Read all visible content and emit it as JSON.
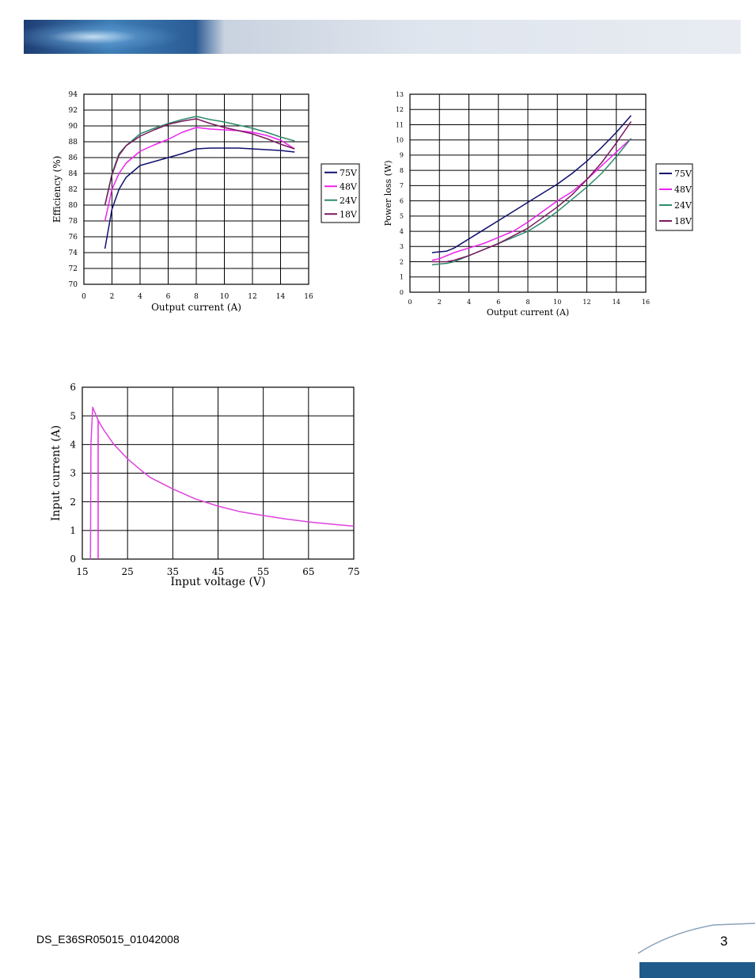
{
  "footer": {
    "doc_code": "DS_E36SR05015_01042008",
    "page": "3"
  },
  "colors": {
    "v75": "#10106e",
    "v48": "#ee22ee",
    "v24": "#2e8b6a",
    "v18": "#7a1860",
    "curve": "#dd44dd",
    "footer_bar": "#1e5a8a"
  },
  "chart_data": [
    {
      "type": "line",
      "xlabel": "Output current (A)",
      "ylabel": "Efficiency (%)",
      "xlim": [
        0,
        16
      ],
      "ylim": [
        70,
        94
      ],
      "xticks": [
        "0",
        "2",
        "4",
        "6",
        "8",
        "10",
        "12",
        "14",
        "16"
      ],
      "yticks": [
        "70",
        "72",
        "74",
        "76",
        "78",
        "80",
        "82",
        "84",
        "86",
        "88",
        "90",
        "92",
        "94"
      ],
      "grid": true,
      "legend_position": "right",
      "series": [
        {
          "name": "75V",
          "color_key": "v75",
          "x": [
            1.5,
            2,
            2.5,
            3,
            4,
            5,
            6,
            7,
            8,
            9,
            10,
            11,
            12,
            13,
            14,
            15
          ],
          "y": [
            74.5,
            79.5,
            82,
            83.5,
            85,
            85.5,
            86,
            86.5,
            87.1,
            87.2,
            87.2,
            87.2,
            87.1,
            87,
            86.9,
            86.7
          ]
        },
        {
          "name": "48V",
          "color_key": "v48",
          "x": [
            1.5,
            2,
            2.5,
            3,
            4,
            5,
            6,
            7,
            8,
            9,
            10,
            11,
            12,
            13,
            14,
            15
          ],
          "y": [
            78,
            82,
            84,
            85.3,
            86.8,
            87.6,
            88.3,
            89.2,
            89.8,
            89.6,
            89.5,
            89.4,
            89.2,
            88.8,
            88.2,
            87.1
          ]
        },
        {
          "name": "24V",
          "color_key": "v24",
          "x": [
            1.5,
            2,
            2.5,
            3,
            4,
            5,
            6,
            7,
            8,
            9,
            10,
            11,
            12,
            13,
            14,
            15
          ],
          "y": [
            80,
            84,
            86.5,
            87.5,
            89,
            89.7,
            90.3,
            90.8,
            91.2,
            90.8,
            90.5,
            90.1,
            89.7,
            89.2,
            88.6,
            88.1
          ]
        },
        {
          "name": "18V",
          "color_key": "v18",
          "x": [
            1.5,
            2,
            2.5,
            3,
            4,
            5,
            6,
            7,
            8,
            9,
            10,
            11,
            12,
            13,
            14,
            15
          ],
          "y": [
            80,
            83.8,
            86.3,
            87.5,
            88.7,
            89.5,
            90.2,
            90.6,
            90.9,
            90.3,
            89.8,
            89.4,
            89,
            88.4,
            87.7,
            87.1
          ]
        }
      ]
    },
    {
      "type": "line",
      "xlabel": "Output current (A)",
      "ylabel": "Power loss (W)",
      "xlim": [
        0,
        16
      ],
      "ylim": [
        0,
        13
      ],
      "xticks": [
        "0",
        "2",
        "4",
        "6",
        "8",
        "10",
        "12",
        "14",
        "16"
      ],
      "yticks": [
        "0",
        "1",
        "2",
        "3",
        "4",
        "5",
        "6",
        "7",
        "8",
        "9",
        "10",
        "11",
        "12",
        "13"
      ],
      "grid": true,
      "legend_position": "right",
      "series": [
        {
          "name": "75V",
          "color_key": "v75",
          "x": [
            1.5,
            2,
            2.5,
            3,
            4,
            5,
            6,
            7,
            8,
            9,
            10,
            11,
            12,
            13,
            14,
            15
          ],
          "y": [
            2.6,
            2.65,
            2.7,
            2.9,
            3.5,
            4.1,
            4.7,
            5.3,
            5.9,
            6.5,
            7.1,
            7.8,
            8.6,
            9.5,
            10.5,
            11.6
          ]
        },
        {
          "name": "48V",
          "color_key": "v48",
          "x": [
            1.5,
            2,
            2.5,
            3,
            4,
            5,
            6,
            7,
            8,
            9,
            10,
            11,
            12,
            13,
            14,
            15
          ],
          "y": [
            2.1,
            2.2,
            2.4,
            2.6,
            2.9,
            3.2,
            3.6,
            4,
            4.6,
            5.3,
            6,
            6.6,
            7.4,
            8.3,
            9.2,
            10.1
          ]
        },
        {
          "name": "24V",
          "color_key": "v24",
          "x": [
            1.5,
            2,
            2.5,
            3,
            4,
            5,
            6,
            7,
            8,
            9,
            10,
            11,
            12,
            13,
            14,
            15
          ],
          "y": [
            1.8,
            1.85,
            1.9,
            2,
            2.4,
            2.8,
            3.2,
            3.6,
            4,
            4.6,
            5.3,
            6.1,
            6.9,
            7.8,
            8.9,
            10.1
          ]
        },
        {
          "name": "18V",
          "color_key": "v18",
          "x": [
            1.5,
            2,
            2.5,
            3,
            4,
            5,
            6,
            7,
            8,
            9,
            10,
            11,
            12,
            13,
            14,
            15
          ],
          "y": [
            2,
            2,
            2,
            2.1,
            2.4,
            2.8,
            3.2,
            3.7,
            4.2,
            4.9,
            5.6,
            6.4,
            7.4,
            8.5,
            9.8,
            11.2
          ]
        }
      ]
    },
    {
      "type": "line",
      "xlabel": "Input voltage (V)",
      "ylabel": "Input current (A)",
      "xlim": [
        15,
        75
      ],
      "ylim": [
        0,
        6
      ],
      "xticks": [
        "15",
        "25",
        "35",
        "45",
        "55",
        "65",
        "75"
      ],
      "yticks": [
        "0",
        "1",
        "2",
        "3",
        "4",
        "5",
        "6"
      ],
      "grid": true,
      "series": [
        {
          "color_key": "curve",
          "x": [
            16.8,
            16.9,
            17.3,
            18.5,
            19,
            20,
            22,
            25,
            28,
            30,
            35,
            40,
            45,
            50,
            55,
            60,
            65,
            70,
            75
          ],
          "y": [
            0,
            4,
            5.3,
            4.85,
            4.7,
            4.45,
            4,
            3.5,
            3.1,
            2.85,
            2.45,
            2.1,
            1.85,
            1.65,
            1.52,
            1.4,
            1.3,
            1.22,
            1.15
          ]
        },
        {
          "color_key": "v48",
          "x": [
            18.5,
            18.5
          ],
          "y": [
            0,
            4.85
          ]
        }
      ]
    }
  ]
}
